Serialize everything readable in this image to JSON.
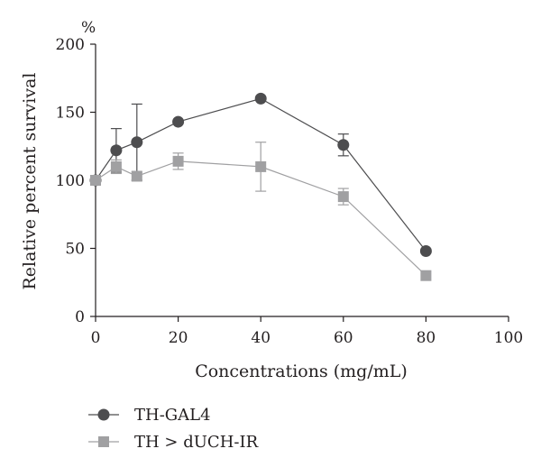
{
  "chart_data": {
    "type": "line",
    "title": "",
    "xlabel": "Concentrations (mg/mL)",
    "ylabel": "Relative percent survival",
    "y_unit": "%",
    "xlim": [
      0,
      100
    ],
    "ylim": [
      0,
      200
    ],
    "x_ticks": [
      0,
      20,
      40,
      60,
      80,
      100
    ],
    "y_ticks": [
      0,
      50,
      100,
      150,
      200
    ],
    "grid": false,
    "legend_position": "bottom-left",
    "series": [
      {
        "name": "TH-GAL4",
        "marker": "circle",
        "color": "#4d4d4f",
        "x": [
          0,
          5,
          10,
          20,
          40,
          60,
          80
        ],
        "y": [
          100,
          122,
          128,
          143,
          160,
          126,
          48
        ],
        "error": [
          0,
          16,
          28,
          0,
          0,
          8,
          0
        ]
      },
      {
        "name": "TH > dUCH-IR",
        "marker": "square",
        "color": "#a0a0a2",
        "x": [
          0,
          5,
          10,
          20,
          40,
          60,
          80
        ],
        "y": [
          100,
          110,
          103,
          114,
          110,
          88,
          30
        ],
        "error": [
          0,
          5,
          3,
          6,
          18,
          6,
          0
        ]
      }
    ]
  }
}
